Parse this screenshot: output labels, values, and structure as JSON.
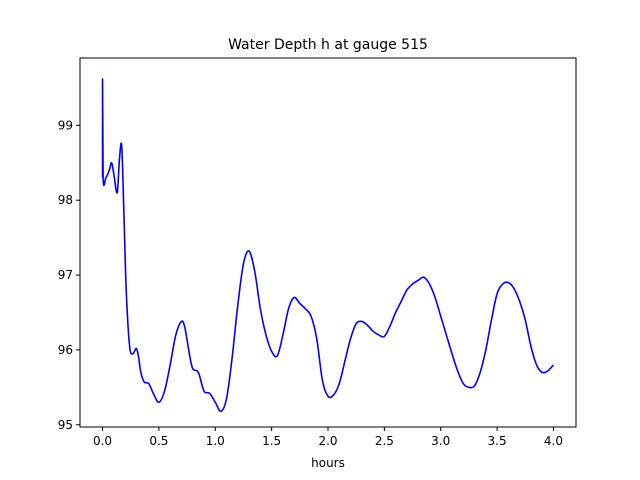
{
  "chart_data": {
    "type": "line",
    "title": "Water Depth h at gauge 515",
    "xlabel": "hours",
    "ylabel": "",
    "xlim": [
      -0.2,
      4.2
    ],
    "ylim": [
      94.97,
      99.9
    ],
    "x_ticks": [
      0.0,
      0.5,
      1.0,
      1.5,
      2.0,
      2.5,
      3.0,
      3.5,
      4.0
    ],
    "x_tick_labels": [
      "0.0",
      "0.5",
      "1.0",
      "1.5",
      "2.0",
      "2.5",
      "3.0",
      "3.5",
      "4.0"
    ],
    "y_ticks": [
      95,
      96,
      97,
      98,
      99
    ],
    "y_tick_labels": [
      "95",
      "96",
      "97",
      "98",
      "99"
    ],
    "grid": false,
    "legend": "none",
    "series": [
      {
        "color": "#0000ff",
        "x": [
          0.0,
          0.0,
          0.005,
          0.03,
          0.06,
          0.08,
          0.1,
          0.13,
          0.15,
          0.17,
          0.19,
          0.21,
          0.24,
          0.27,
          0.3,
          0.32,
          0.34,
          0.37,
          0.41,
          0.45,
          0.5,
          0.55,
          0.6,
          0.65,
          0.7,
          0.73,
          0.77,
          0.8,
          0.85,
          0.9,
          0.95,
          1.0,
          1.05,
          1.1,
          1.15,
          1.2,
          1.25,
          1.3,
          1.35,
          1.4,
          1.45,
          1.5,
          1.55,
          1.6,
          1.65,
          1.7,
          1.75,
          1.8,
          1.85,
          1.9,
          1.95,
          2.0,
          2.05,
          2.1,
          2.15,
          2.2,
          2.25,
          2.3,
          2.35,
          2.4,
          2.45,
          2.5,
          2.55,
          2.6,
          2.65,
          2.7,
          2.75,
          2.8,
          2.85,
          2.9,
          2.95,
          3.0,
          3.05,
          3.1,
          3.15,
          3.2,
          3.25,
          3.3,
          3.35,
          3.4,
          3.45,
          3.5,
          3.55,
          3.6,
          3.65,
          3.7,
          3.75,
          3.8,
          3.85,
          3.9,
          3.95,
          4.0
        ],
        "y": [
          98.3,
          99.62,
          98.3,
          98.3,
          98.4,
          98.5,
          98.35,
          98.1,
          98.55,
          98.72,
          97.8,
          96.8,
          96.05,
          95.95,
          96.02,
          95.9,
          95.7,
          95.57,
          95.55,
          95.42,
          95.3,
          95.45,
          95.8,
          96.2,
          96.38,
          96.3,
          95.95,
          95.75,
          95.7,
          95.45,
          95.42,
          95.3,
          95.18,
          95.35,
          95.9,
          96.6,
          97.15,
          97.32,
          97.05,
          96.55,
          96.2,
          95.98,
          95.92,
          96.2,
          96.55,
          96.7,
          96.62,
          96.55,
          96.45,
          96.15,
          95.6,
          95.38,
          95.4,
          95.55,
          95.85,
          96.15,
          96.35,
          96.38,
          96.33,
          96.25,
          96.2,
          96.18,
          96.32,
          96.5,
          96.65,
          96.8,
          96.88,
          96.93,
          96.97,
          96.88,
          96.7,
          96.45,
          96.2,
          95.95,
          95.72,
          95.55,
          95.5,
          95.52,
          95.7,
          96.0,
          96.4,
          96.75,
          96.88,
          96.9,
          96.82,
          96.65,
          96.4,
          96.05,
          95.8,
          95.7,
          95.72,
          95.8
        ]
      }
    ]
  }
}
